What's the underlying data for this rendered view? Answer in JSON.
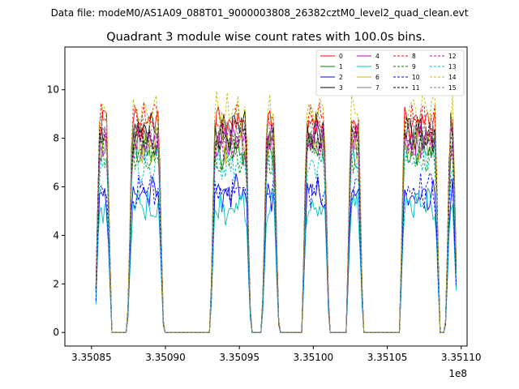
{
  "header": {
    "data_file": "Data file: modeM0/AS1A09_088T01_9000003808_26382cztM0_level2_quad_clean.evt"
  },
  "chart_data": {
    "type": "line",
    "title": "Quadrant 3 module wise count rates with 100.0s bins.",
    "xlabel": "",
    "ylabel": "",
    "x_offset_label": "1e8",
    "xlim": [
      3.350832,
      3.351104
    ],
    "ylim": [
      -0.56,
      11.76
    ],
    "x_ticks": [
      3.35085,
      3.3509,
      3.35095,
      3.351,
      3.35105,
      3.3511
    ],
    "x_tick_labels": [
      "3.35085",
      "3.35090",
      "3.35095",
      "3.35100",
      "3.35105",
      "3.35110"
    ],
    "y_ticks": [
      0,
      2,
      4,
      6,
      8,
      10
    ],
    "y_tick_labels": [
      "0",
      "2",
      "4",
      "6",
      "8",
      "10"
    ],
    "legend_position": "top-right",
    "legend_columns": 4,
    "segments": [
      {
        "start": 3.350854,
        "end": 3.350862
      },
      {
        "start": 3.350876,
        "end": 3.350897
      },
      {
        "start": 3.350932,
        "end": 3.350956
      },
      {
        "start": 3.350967,
        "end": 3.350975
      },
      {
        "start": 3.350994,
        "end": 3.351009
      },
      {
        "start": 3.351024,
        "end": 3.351032
      },
      {
        "start": 3.35106,
        "end": 3.351084
      },
      {
        "start": 3.351091,
        "end": 3.351096
      }
    ],
    "series": [
      {
        "name": "0",
        "color": "#ff0000",
        "dash": "solid",
        "level": 8.6
      },
      {
        "name": "1",
        "color": "#008000",
        "dash": "solid",
        "level": 7.5
      },
      {
        "name": "2",
        "color": "#0000ff",
        "dash": "solid",
        "level": 5.7
      },
      {
        "name": "3",
        "color": "#000000",
        "dash": "solid",
        "level": 8.3
      },
      {
        "name": "4",
        "color": "#bf00bf",
        "dash": "solid",
        "level": 8.0
      },
      {
        "name": "5",
        "color": "#00bfbf",
        "dash": "solid",
        "level": 5.2
      },
      {
        "name": "6",
        "color": "#bfbf00",
        "dash": "solid",
        "level": 7.7
      },
      {
        "name": "7",
        "color": "#808080",
        "dash": "solid",
        "level": 7.9
      },
      {
        "name": "8",
        "color": "#ff0000",
        "dash": "dashed",
        "level": 8.8
      },
      {
        "name": "9",
        "color": "#008000",
        "dash": "dashed",
        "level": 7.3
      },
      {
        "name": "10",
        "color": "#0000ff",
        "dash": "dashed",
        "level": 5.9
      },
      {
        "name": "11",
        "color": "#000000",
        "dash": "dashed",
        "level": 8.1
      },
      {
        "name": "12",
        "color": "#bf00bf",
        "dash": "dashed",
        "level": 7.8
      },
      {
        "name": "13",
        "color": "#00bfbf",
        "dash": "dashed",
        "level": 7.0
      },
      {
        "name": "14",
        "color": "#bfbf00",
        "dash": "dashed",
        "level": 9.1
      },
      {
        "name": "15",
        "color": "#808080",
        "dash": "dashed",
        "level": 8.4
      }
    ]
  }
}
